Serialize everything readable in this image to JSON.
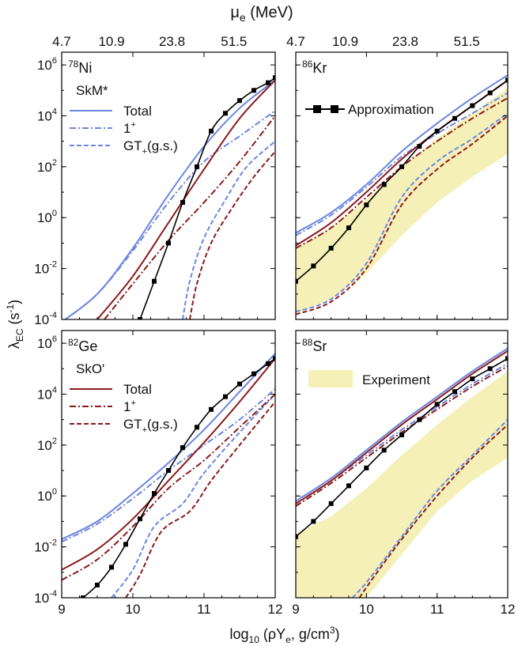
{
  "figure": {
    "top_axis_label": "μe (MeV)",
    "top_ticks": [
      "4.7",
      "10.9",
      "23.8",
      "51.5"
    ],
    "x_axis_label": "log10 (ρYe, g/cm3)",
    "y_axis_label": "λEC (s-1)",
    "colors": {
      "skm": "#6c86e0",
      "sko": "#8b1a1a",
      "approx": "#000000",
      "experiment": "#f5f0b8"
    }
  },
  "chart_data": [
    {
      "type": "line",
      "nucleus": "78Ni",
      "mass": "78",
      "element": "Ni",
      "ylim": [
        -4,
        6.5
      ],
      "xlim": [
        9,
        12
      ],
      "yscale": "log10",
      "x_ticks": [
        "9",
        "10",
        "11",
        "12"
      ],
      "y_ticks": [
        -4,
        -2,
        0,
        2,
        4,
        6
      ],
      "legend": {
        "title": "SkM*",
        "entries": [
          "Total",
          "1+",
          "GT+(g.s.)"
        ]
      },
      "series": [
        {
          "name": "Total",
          "model": "skm",
          "style": "solid",
          "x": [
            9,
            9.5,
            10,
            10.5,
            11,
            11.5,
            12
          ],
          "y": [
            -4.1,
            -3.0,
            -1.2,
            0.9,
            2.8,
            4.3,
            5.4
          ]
        },
        {
          "name": "1+",
          "model": "skm",
          "style": "dashdot",
          "x": [
            9,
            9.5,
            10,
            10.5,
            11,
            11.5,
            12
          ],
          "y": [
            -4.1,
            -3.0,
            -1.3,
            0.6,
            2.2,
            3.2,
            4.2
          ]
        },
        {
          "name": "GT+(g.s.)",
          "model": "skm",
          "style": "dashed",
          "x": [
            10.7,
            10.8,
            11,
            11.3,
            11.6,
            12
          ],
          "y": [
            -4,
            -2.5,
            -0.8,
            0.7,
            2.0,
            3.0
          ]
        },
        {
          "model": "sko",
          "style": "solid",
          "x": [
            9.5,
            10,
            10.5,
            11,
            11.5,
            12
          ],
          "y": [
            -4,
            -2.3,
            -0.2,
            1.9,
            3.9,
            5.4
          ]
        },
        {
          "model": "sko",
          "style": "dashdot",
          "x": [
            9.6,
            10,
            10.5,
            11,
            11.5,
            12
          ],
          "y": [
            -4,
            -2.6,
            -0.9,
            0.6,
            2.2,
            4.0
          ]
        },
        {
          "model": "sko",
          "style": "dashed",
          "x": [
            10.8,
            10.9,
            11.1,
            11.4,
            11.7,
            12
          ],
          "y": [
            -4,
            -2.6,
            -1.0,
            0.4,
            1.6,
            2.6
          ]
        },
        {
          "name": "Approximation",
          "model": "approx",
          "style": "markers",
          "x": [
            10.1,
            10.3,
            10.5,
            10.7,
            10.9,
            11.1,
            11.3,
            11.5,
            11.7,
            11.9,
            12
          ],
          "y": [
            -4,
            -2.5,
            -1.0,
            0.6,
            2.0,
            3.4,
            4.1,
            4.6,
            5.0,
            5.3,
            5.5
          ]
        }
      ]
    },
    {
      "type": "line",
      "nucleus": "86Kr",
      "mass": "86",
      "element": "Kr",
      "ylim": [
        -4,
        6.5
      ],
      "xlim": [
        9,
        12
      ],
      "yscale": "log10",
      "x_ticks": [
        "9",
        "10",
        "11",
        "12"
      ],
      "y_ticks": [
        -4,
        -2,
        0,
        2,
        4,
        6
      ],
      "legend": {
        "title": "",
        "entries": [
          "Approximation"
        ]
      },
      "series": [
        {
          "model": "skm",
          "style": "solid",
          "x": [
            9,
            9.5,
            10,
            10.5,
            11,
            11.5,
            12
          ],
          "y": [
            -0.6,
            0.2,
            1.3,
            2.6,
            3.7,
            4.7,
            5.6
          ]
        },
        {
          "model": "skm",
          "style": "dashdot",
          "x": [
            9,
            9.5,
            10,
            10.5,
            11,
            11.5,
            12
          ],
          "y": [
            -0.7,
            0.1,
            1.2,
            2.4,
            3.3,
            4.1,
            4.9
          ]
        },
        {
          "model": "skm",
          "style": "dashed",
          "x": [
            9,
            9.5,
            10,
            10.5,
            11,
            11.5,
            12
          ],
          "y": [
            -3.7,
            -3.2,
            -1.8,
            0.8,
            2.2,
            3.1,
            4.1
          ]
        },
        {
          "model": "sko",
          "style": "solid",
          "x": [
            9,
            9.5,
            10,
            10.5,
            11,
            11.5,
            12
          ],
          "y": [
            -1.1,
            -0.2,
            1.0,
            2.3,
            3.4,
            4.4,
            5.4
          ]
        },
        {
          "model": "sko",
          "style": "dashdot",
          "x": [
            9,
            9.5,
            10,
            10.5,
            11,
            11.5,
            12
          ],
          "y": [
            -1.2,
            -0.4,
            0.8,
            2.0,
            3.0,
            3.9,
            4.7
          ]
        },
        {
          "model": "sko",
          "style": "dashed",
          "x": [
            9,
            9.5,
            10,
            10.5,
            11,
            11.5,
            12
          ],
          "y": [
            -3.8,
            -3.3,
            -2.0,
            0.5,
            1.9,
            2.9,
            4.0
          ]
        },
        {
          "name": "Approximation",
          "model": "approx",
          "style": "markers",
          "x": [
            9,
            9.25,
            9.5,
            9.75,
            10,
            10.25,
            10.5,
            10.75,
            11,
            11.25,
            11.5,
            11.75,
            12
          ],
          "y": [
            -2.5,
            -1.9,
            -1.2,
            -0.4,
            0.5,
            1.3,
            2.0,
            2.8,
            3.4,
            3.9,
            4.4,
            4.9,
            5.4
          ]
        }
      ],
      "experiment_band": {
        "x": [
          9,
          9.5,
          10,
          10.5,
          11,
          11.5,
          12
        ],
        "upper": [
          -1.2,
          -0.4,
          0.7,
          2.0,
          3.1,
          4.1,
          5.1
        ],
        "lower": [
          -3.8,
          -3.2,
          -2.2,
          -0.7,
          0.6,
          1.6,
          2.5
        ]
      }
    },
    {
      "type": "line",
      "nucleus": "82Ge",
      "mass": "82",
      "element": "Ge",
      "ylim": [
        -4,
        6.5
      ],
      "xlim": [
        9,
        12
      ],
      "yscale": "log10",
      "x_ticks": [
        "9",
        "10",
        "11",
        "12"
      ],
      "y_ticks": [
        -4,
        -2,
        0,
        2,
        4,
        6
      ],
      "legend": {
        "title": "SkO'",
        "entries": [
          "Total",
          "1+",
          "GT+(g.s.)"
        ]
      },
      "series": [
        {
          "model": "skm",
          "style": "solid",
          "x": [
            9,
            9.5,
            10,
            10.5,
            11,
            11.5,
            12
          ],
          "y": [
            -1.7,
            -1.0,
            0.1,
            1.3,
            2.6,
            4.1,
            5.6
          ]
        },
        {
          "model": "skm",
          "style": "dashdot",
          "x": [
            9,
            9.5,
            10,
            10.5,
            11,
            11.5,
            12
          ],
          "y": [
            -1.8,
            -1.1,
            -0.1,
            1.0,
            2.0,
            3.0,
            4.2
          ]
        },
        {
          "model": "skm",
          "style": "dashed",
          "x": [
            9.7,
            10,
            10.3,
            10.7,
            11,
            11.5,
            12
          ],
          "y": [
            -4,
            -2.9,
            -1.2,
            -0.3,
            0.9,
            2.5,
            4.0
          ]
        },
        {
          "name": "Total",
          "model": "sko",
          "style": "solid",
          "x": [
            9,
            9.5,
            10,
            10.5,
            11,
            11.5,
            12
          ],
          "y": [
            -2.9,
            -2.1,
            -0.9,
            0.6,
            2.1,
            3.7,
            5.4
          ]
        },
        {
          "name": "1+",
          "model": "sko",
          "style": "dashdot",
          "x": [
            9,
            9.5,
            10,
            10.5,
            11,
            11.5,
            12
          ],
          "y": [
            -3.3,
            -2.5,
            -1.2,
            0.3,
            1.4,
            2.7,
            4.0
          ]
        },
        {
          "name": "GT+(g.s.)",
          "model": "sko",
          "style": "dashed",
          "x": [
            9.9,
            10.1,
            10.4,
            10.8,
            11.1,
            11.5,
            12
          ],
          "y": [
            -4,
            -3.1,
            -1.4,
            -0.6,
            0.6,
            2.0,
            3.7
          ]
        },
        {
          "name": "Approximation",
          "model": "approx",
          "style": "markers",
          "x": [
            9.3,
            9.5,
            9.7,
            9.9,
            10.1,
            10.3,
            10.5,
            10.7,
            10.9,
            11.1,
            11.3,
            11.5,
            11.7,
            11.9,
            12
          ],
          "y": [
            -4,
            -3.5,
            -2.8,
            -1.9,
            -0.9,
            0.1,
            1.0,
            1.9,
            2.7,
            3.4,
            3.9,
            4.4,
            4.8,
            5.2,
            5.4
          ]
        }
      ]
    },
    {
      "type": "line",
      "nucleus": "88Sr",
      "mass": "88",
      "element": "Sr",
      "ylim": [
        -4,
        6.5
      ],
      "xlim": [
        9,
        12
      ],
      "yscale": "log10",
      "x_ticks": [
        "9",
        "10",
        "11",
        "12"
      ],
      "y_ticks": [
        -4,
        -2,
        0,
        2,
        4,
        6
      ],
      "legend": {
        "title": "",
        "entries": [
          "Experiment"
        ]
      },
      "series": [
        {
          "model": "skm",
          "style": "solid",
          "x": [
            9,
            9.5,
            10,
            10.5,
            11,
            11.5,
            12
          ],
          "y": [
            -0.2,
            0.7,
            1.8,
            2.9,
            3.9,
            4.9,
            5.8
          ]
        },
        {
          "model": "skm",
          "style": "dashdot",
          "x": [
            9,
            9.5,
            10,
            10.5,
            11,
            11.5,
            12
          ],
          "y": [
            -0.3,
            0.6,
            1.6,
            2.6,
            3.5,
            4.4,
            5.2
          ]
        },
        {
          "model": "skm",
          "style": "dashed",
          "x": [
            9.8,
            10,
            10.5,
            11,
            11.5,
            12
          ],
          "y": [
            -4,
            -3.4,
            -1.6,
            0.2,
            1.6,
            3.0
          ]
        },
        {
          "model": "sko",
          "style": "solid",
          "x": [
            9,
            9.5,
            10,
            10.5,
            11,
            11.5,
            12
          ],
          "y": [
            -0.3,
            0.6,
            1.7,
            2.8,
            3.8,
            4.8,
            5.7
          ]
        },
        {
          "model": "sko",
          "style": "dashdot",
          "x": [
            9,
            9.5,
            10,
            10.5,
            11,
            11.5,
            12
          ],
          "y": [
            -0.4,
            0.5,
            1.5,
            2.5,
            3.4,
            4.3,
            5.1
          ]
        },
        {
          "model": "sko",
          "style": "dashed",
          "x": [
            9.9,
            10.1,
            10.5,
            11,
            11.5,
            12
          ],
          "y": [
            -4,
            -3.2,
            -1.7,
            0.0,
            1.5,
            2.8
          ]
        },
        {
          "model": "approx",
          "style": "markers",
          "x": [
            9,
            9.25,
            9.5,
            9.75,
            10,
            10.25,
            10.5,
            10.75,
            11,
            11.25,
            11.5,
            11.75,
            12
          ],
          "y": [
            -1.6,
            -1.0,
            -0.3,
            0.4,
            1.1,
            1.8,
            2.4,
            3.0,
            3.6,
            4.1,
            4.6,
            5.0,
            5.4
          ]
        }
      ],
      "experiment_band": {
        "x": [
          9,
          9.5,
          10,
          10.5,
          11,
          11.5,
          12
        ],
        "upper": [
          -1.5,
          -0.8,
          0.3,
          1.6,
          2.8,
          3.9,
          4.9
        ],
        "lower": [
          -4,
          -4,
          -4,
          -2.3,
          -0.6,
          0.6,
          1.5
        ]
      }
    }
  ]
}
